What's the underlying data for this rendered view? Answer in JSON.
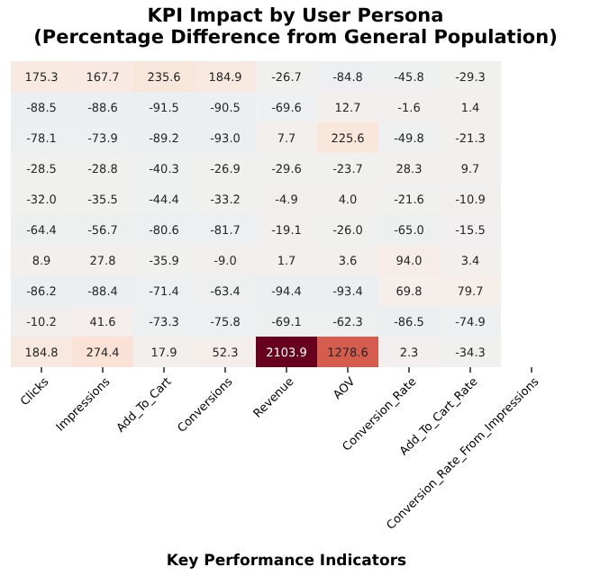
{
  "chart_data": {
    "type": "heatmap",
    "title": "KPI Impact by User Persona\n(Percentage Difference from General Population)",
    "xlabel": "Key Performance Indicators",
    "categories": [
      "Clicks",
      "Impressions",
      "Add_To_Cart",
      "Conversions",
      "Revenue",
      "AOV",
      "Conversion_Rate",
      "Add_To_Cart_Rate",
      "Conversion_Rate_From_Impressions"
    ],
    "y_categories": [
      null,
      null,
      null,
      null,
      null,
      null,
      null,
      null,
      null,
      null
    ],
    "cells": [
      [
        175.3,
        167.7,
        235.6,
        184.9,
        -26.7,
        -84.8,
        -45.8,
        -29.3,
        null
      ],
      [
        -88.5,
        -88.6,
        -91.5,
        -90.5,
        -69.6,
        12.7,
        -1.6,
        1.4,
        null
      ],
      [
        -78.1,
        -73.9,
        -89.2,
        -93.0,
        7.7,
        225.6,
        -49.8,
        -21.3,
        null
      ],
      [
        -28.5,
        -28.8,
        -40.3,
        -26.9,
        -29.6,
        -23.7,
        28.3,
        9.7,
        null
      ],
      [
        -32.0,
        -35.5,
        -44.4,
        -33.2,
        -4.9,
        4.0,
        -21.6,
        -10.9,
        null
      ],
      [
        -64.4,
        -56.7,
        -80.6,
        -81.7,
        -19.1,
        -26.0,
        -65.0,
        -15.5,
        null
      ],
      [
        8.9,
        27.8,
        -35.9,
        -9.0,
        1.7,
        3.6,
        94.0,
        3.4,
        null
      ],
      [
        -86.2,
        -88.4,
        -71.4,
        -63.4,
        -94.4,
        -93.4,
        69.8,
        79.7,
        null
      ],
      [
        -10.2,
        41.6,
        -73.3,
        -75.8,
        -69.1,
        -62.3,
        -86.5,
        -74.9,
        null
      ],
      [
        184.8,
        274.4,
        17.9,
        52.3,
        2103.9,
        1278.6,
        2.3,
        -34.3,
        null
      ]
    ],
    "cell_labels": [
      [
        "175.3",
        "167.7",
        "235.6",
        "184.9",
        "-26.7",
        "-84.8",
        "-45.8",
        "-29.3",
        null
      ],
      [
        "-88.5",
        "-88.6",
        "-91.5",
        "-90.5",
        "-69.6",
        "12.7",
        "-1.6",
        "1.4",
        null
      ],
      [
        "-78.1",
        "-73.9",
        "-89.2",
        "-93.0",
        "7.7",
        "225.6",
        "-49.8",
        "-21.3",
        null
      ],
      [
        "-28.5",
        "-28.8",
        "-40.3",
        "-26.9",
        "-29.6",
        "-23.7",
        "28.3",
        "9.7",
        null
      ],
      [
        "-32.0",
        "-35.5",
        "-44.4",
        "-33.2",
        "-4.9",
        "4.0",
        "-21.6",
        "-10.9",
        null
      ],
      [
        "-64.4",
        "-56.7",
        "-80.6",
        "-81.7",
        "-19.1",
        "-26.0",
        "-65.0",
        "-15.5",
        null
      ],
      [
        "8.9",
        "27.8",
        "-35.9",
        "-9.0",
        "1.7",
        "3.6",
        "94.0",
        "3.4",
        null
      ],
      [
        "-86.2",
        "-88.4",
        "-71.4",
        "-63.4",
        "-94.4",
        "-93.4",
        "69.8",
        "79.7",
        null
      ],
      [
        "-10.2",
        "41.6",
        "-73.3",
        "-75.8",
        "-69.1",
        "-62.3",
        "-86.5",
        "-74.9",
        null
      ],
      [
        "184.8",
        "274.4",
        "17.9",
        "52.3",
        "2103.9",
        "1278.6",
        "2.3",
        "-34.3",
        null
      ]
    ],
    "data_labels": true
  }
}
